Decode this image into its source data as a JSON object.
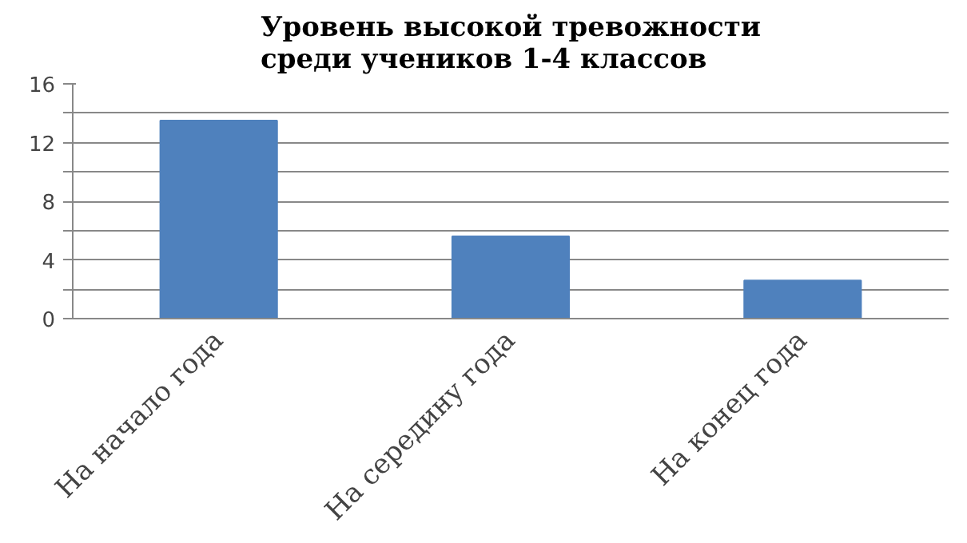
{
  "chart_data": {
    "type": "bar",
    "title": "Уровень высокой тревожности\nсреди учеников 1-4 классов",
    "categories": [
      "На начало года",
      "На середину года",
      "На конец года"
    ],
    "values": [
      13.5,
      5.6,
      2.6
    ],
    "color": "#4f81bd",
    "ylim": [
      0,
      16
    ],
    "yticks": [
      0,
      {
        "value": 2,
        "label": null
      },
      4,
      {
        "value": 6,
        "label": null
      },
      8,
      {
        "value": 10,
        "label": null
      },
      12,
      {
        "value": 14,
        "label": null
      },
      16
    ],
    "grid": "y"
  }
}
